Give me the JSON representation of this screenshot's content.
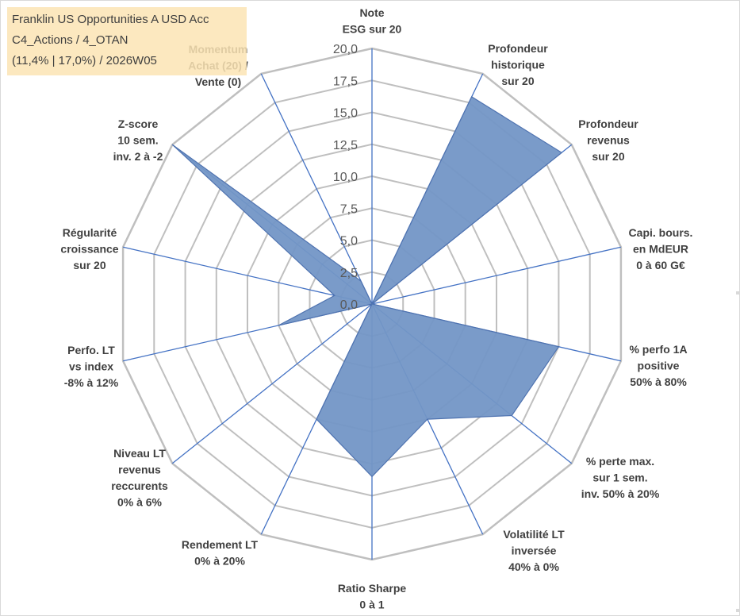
{
  "info_box": {
    "line1": "Franklin US Opportunities A USD Acc",
    "line2": "C4_Actions / 4_OTAN",
    "line3": "(11,4% | 17,0%) / 2026W05"
  },
  "colors": {
    "fill": "#7396c6",
    "stroke": "#4f73b0",
    "grid": "#bfbfbf",
    "spoke": "#4472c4",
    "info_bg": "#fce4b4"
  },
  "chart_data": {
    "type": "radar",
    "title": "",
    "rmax": 20,
    "ticks": [
      "0,0",
      "2,5",
      "5,0",
      "7,5",
      "10,0",
      "12,5",
      "15,0",
      "17,5",
      "20,0"
    ],
    "tick_values": [
      0,
      2.5,
      5,
      7.5,
      10,
      12.5,
      15,
      17.5,
      20
    ],
    "axes": [
      {
        "label": [
          "Note",
          "ESG sur 20"
        ],
        "value": 0
      },
      {
        "label": [
          "Profondeur",
          "historique",
          "sur 20"
        ],
        "value": 18
      },
      {
        "label": [
          "Profondeur",
          "revenus",
          "sur 20"
        ],
        "value": 19
      },
      {
        "label": [
          "Capi. bours.",
          "en MdEUR",
          "0 à 60 G€"
        ],
        "value": 0
      },
      {
        "label": [
          "% perfo 1A",
          "positive",
          "50% à 80%"
        ],
        "value": 15
      },
      {
        "label": [
          "% perte max.",
          "sur 1 sem.",
          "inv. 50% à 20%"
        ],
        "value": 14
      },
      {
        "label": [
          "Volatilité LT",
          "inversée",
          "40% à 0%"
        ],
        "value": 10
      },
      {
        "label": [
          "Ratio Sharpe",
          "0 à 1"
        ],
        "value": 13.5
      },
      {
        "label": [
          "Rendement LT",
          "0% à 20%"
        ],
        "value": 10
      },
      {
        "label": [
          "Niveau LT",
          "revenus",
          "reccurents",
          "0% à 6%"
        ],
        "value": 0
      },
      {
        "label": [
          "Perfo. LT",
          "vs index",
          "-8% à 12%"
        ],
        "value": 7.5
      },
      {
        "label": [
          "Régularité",
          "croissance",
          "sur 20"
        ],
        "value": 3
      },
      {
        "label": [
          "Z-score",
          "10 sem.",
          "inv. 2 à -2"
        ],
        "value": 20
      },
      {
        "label": [
          "Momentum",
          "Achat (20) /",
          "Vente (0)"
        ],
        "value": 2
      }
    ]
  }
}
